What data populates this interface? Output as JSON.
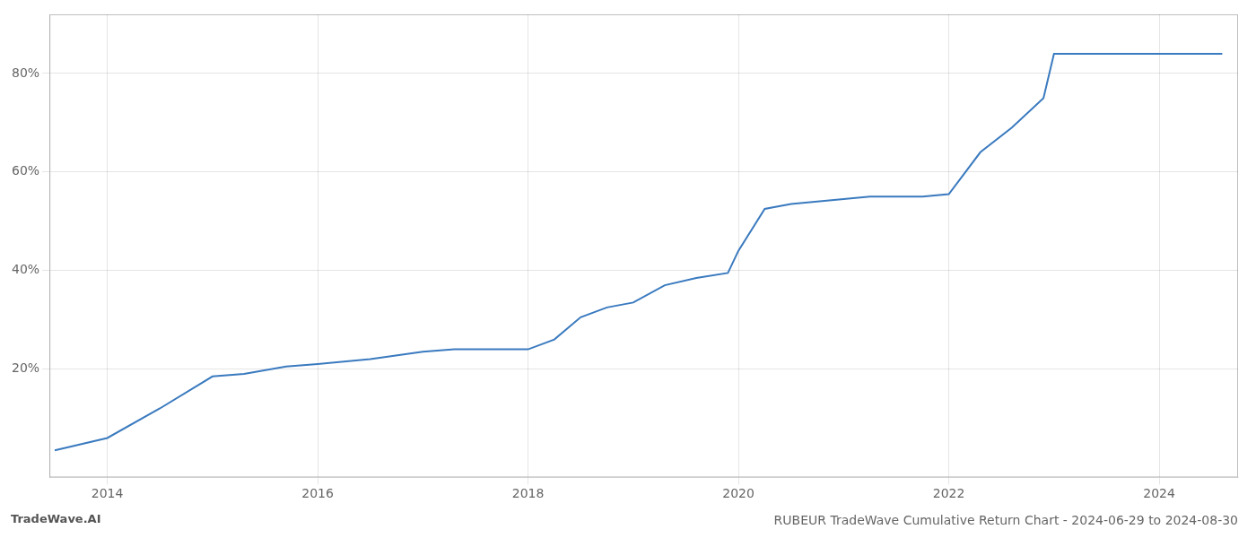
{
  "chart_data": {
    "type": "line",
    "title": "RUBEUR TradeWave Cumulative Return Chart - 2024-06-29 to 2024-08-30",
    "annotations": [
      {
        "text": "TradeWave.AI"
      }
    ],
    "x": [
      2013.5,
      2014.0,
      2014.5,
      2015.0,
      2015.3,
      2015.7,
      2016.0,
      2016.5,
      2017.0,
      2017.3,
      2017.6,
      2017.9,
      2018.0,
      2018.25,
      2018.5,
      2018.75,
      2019.0,
      2019.3,
      2019.6,
      2019.9,
      2020.0,
      2020.25,
      2020.5,
      2020.75,
      2021.0,
      2021.25,
      2021.5,
      2021.75,
      2022.0,
      2022.3,
      2022.6,
      2022.9,
      2023.0,
      2023.25,
      2023.5,
      2023.75,
      2024.0,
      2024.3,
      2024.6
    ],
    "values": [
      3.5,
      6.0,
      12.0,
      18.5,
      19.0,
      20.5,
      21.0,
      22.0,
      23.5,
      24.0,
      24.0,
      24.0,
      24.0,
      26.0,
      30.5,
      32.5,
      33.5,
      37.0,
      38.5,
      39.5,
      44.0,
      52.5,
      53.5,
      54.0,
      54.5,
      55.0,
      55.0,
      55.0,
      55.5,
      64.0,
      69.0,
      75.0,
      84.0,
      84.0,
      84.0,
      84.0,
      84.0,
      84.0,
      84.0
    ],
    "color": "#3a7abf",
    "xlim": [
      2013.45,
      2024.75
    ],
    "ylim": [
      -2,
      92
    ],
    "xticks": [
      2014,
      2016,
      2018,
      2020,
      2022,
      2024
    ],
    "yticks": [
      {
        "value": 20,
        "label": "20%"
      },
      {
        "value": 40,
        "label": "40%"
      },
      {
        "value": 60,
        "label": "60%"
      },
      {
        "value": 80,
        "label": "80%"
      }
    ],
    "grid": true
  }
}
